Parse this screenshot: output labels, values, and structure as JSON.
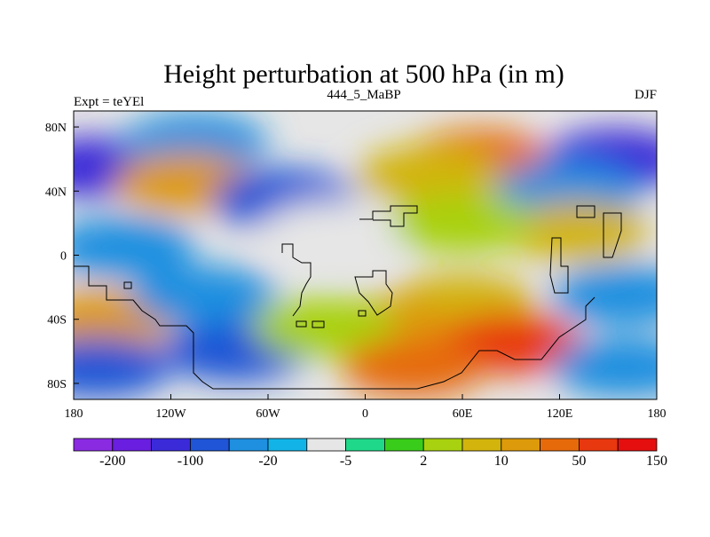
{
  "chart_data": {
    "type": "heatmap",
    "title": "Height perturbation at 500 hPa (in m)",
    "subtitle_left": "Expt = teYEl",
    "subtitle_center": "444_5_MaBP",
    "subtitle_right": "DJF",
    "x_range": [
      -180,
      180
    ],
    "y_range": [
      -90,
      90
    ],
    "x_ticks": [
      {
        "value": -180,
        "label": "180"
      },
      {
        "value": -120,
        "label": "120W"
      },
      {
        "value": -60,
        "label": "60W"
      },
      {
        "value": 0,
        "label": "0"
      },
      {
        "value": 60,
        "label": "60E"
      },
      {
        "value": 120,
        "label": "120E"
      },
      {
        "value": 180,
        "label": "180"
      }
    ],
    "y_ticks": [
      {
        "value": 80,
        "label": "80N"
      },
      {
        "value": 40,
        "label": "40N"
      },
      {
        "value": 0,
        "label": "0"
      },
      {
        "value": -40,
        "label": "40S"
      },
      {
        "value": -80,
        "label": "80S"
      }
    ],
    "colorbar": {
      "colors": [
        "#8a2be2",
        "#6a1ee0",
        "#3a2ad8",
        "#1f55d6",
        "#1f8fe0",
        "#12b4e8",
        "#e6e6e6",
        "#1fd88a",
        "#39cc1a",
        "#a8d10f",
        "#d2b40c",
        "#dd9a0a",
        "#e66a0a",
        "#e8380f",
        "#e60f0f"
      ],
      "labels": [
        {
          "index": 1,
          "label": "-200"
        },
        {
          "index": 3,
          "label": "-100"
        },
        {
          "index": 5,
          "label": "-20"
        },
        {
          "index": 7,
          "label": "-5"
        },
        {
          "index": 9,
          "label": "2"
        },
        {
          "index": 11,
          "label": "10"
        },
        {
          "index": 13,
          "label": "50"
        },
        {
          "index": 15,
          "label": "150"
        }
      ]
    },
    "fields": [
      {
        "lon": -165,
        "lat": 55,
        "level": 2
      },
      {
        "lon": -105,
        "lat": 70,
        "level": 4
      },
      {
        "lon": 70,
        "lat": 60,
        "level": 12
      },
      {
        "lon": 40,
        "lat": 50,
        "level": 10
      },
      {
        "lon": -110,
        "lat": 45,
        "level": 11
      },
      {
        "lon": -50,
        "lat": 35,
        "level": 3
      },
      {
        "lon": 155,
        "lat": 60,
        "level": 2
      },
      {
        "lon": 125,
        "lat": 40,
        "level": 4
      },
      {
        "lon": 130,
        "lat": 15,
        "level": 10
      },
      {
        "lon": -150,
        "lat": 5,
        "level": 4
      },
      {
        "lon": -20,
        "lat": 15,
        "level": 6
      },
      {
        "lon": 60,
        "lat": 20,
        "level": 9
      },
      {
        "lon": 60,
        "lat": -30,
        "level": 10
      },
      {
        "lon": 160,
        "lat": -25,
        "level": 4
      },
      {
        "lon": -160,
        "lat": -40,
        "level": 11
      },
      {
        "lon": -100,
        "lat": -25,
        "level": 4
      },
      {
        "lon": 10,
        "lat": -45,
        "level": 11
      },
      {
        "lon": 90,
        "lat": -55,
        "level": 13
      },
      {
        "lon": -80,
        "lat": -60,
        "level": 3
      },
      {
        "lon": -165,
        "lat": -70,
        "level": 3
      },
      {
        "lon": 160,
        "lat": -70,
        "level": 4
      },
      {
        "lon": -25,
        "lat": -45,
        "level": 9
      },
      {
        "lon": 30,
        "lat": -70,
        "level": 12
      }
    ]
  }
}
